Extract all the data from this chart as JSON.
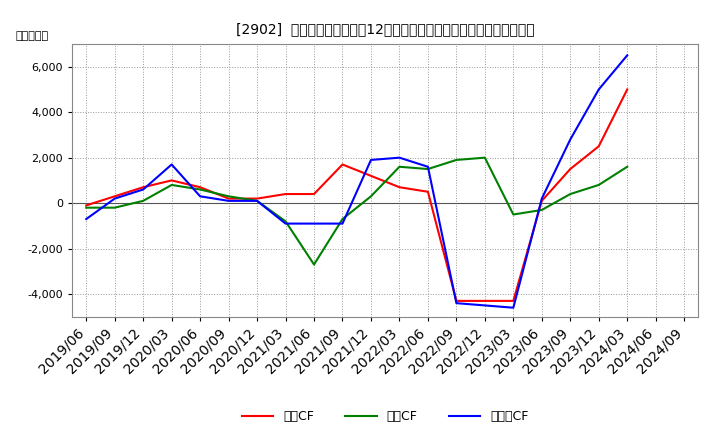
{
  "title": "[2902]  キャッシュフローの12か月移動合計の対前年同期増減額の推移",
  "ylabel": "（百万円）",
  "background_color": "#ffffff",
  "plot_bg_color": "#ffffff",
  "grid_color": "#aaaaaa",
  "x_labels": [
    "2019/06",
    "2019/09",
    "2019/12",
    "2020/03",
    "2020/06",
    "2020/09",
    "2020/12",
    "2021/03",
    "2021/06",
    "2021/09",
    "2021/12",
    "2022/03",
    "2022/06",
    "2022/09",
    "2022/12",
    "2023/03",
    "2023/06",
    "2023/09",
    "2023/12",
    "2024/03",
    "2024/06",
    "2024/09"
  ],
  "operating_cf": [
    -100,
    300,
    700,
    1000,
    700,
    200,
    200,
    400,
    400,
    1700,
    1200,
    700,
    500,
    -4300,
    -4300,
    -4300,
    100,
    1500,
    2500,
    5000,
    null,
    null
  ],
  "investing_cf": [
    -200,
    -200,
    100,
    800,
    600,
    300,
    100,
    -800,
    -2700,
    -700,
    300,
    1600,
    1500,
    1900,
    2000,
    -500,
    -300,
    400,
    800,
    1600,
    null,
    null
  ],
  "free_cf": [
    -700,
    200,
    600,
    1700,
    300,
    100,
    100,
    -900,
    -900,
    -900,
    1900,
    2000,
    1600,
    -4400,
    -4500,
    -4600,
    200,
    2800,
    5000,
    6500,
    null,
    null
  ],
  "operating_color": "#ff0000",
  "investing_color": "#008000",
  "free_color": "#0000ff",
  "ylim": [
    -5000,
    7000
  ],
  "yticks": [
    -4000,
    -2000,
    0,
    2000,
    4000,
    6000
  ],
  "title_fontsize": 11,
  "legend_labels": [
    "営業CF",
    "投資CF",
    "フリーCF"
  ]
}
